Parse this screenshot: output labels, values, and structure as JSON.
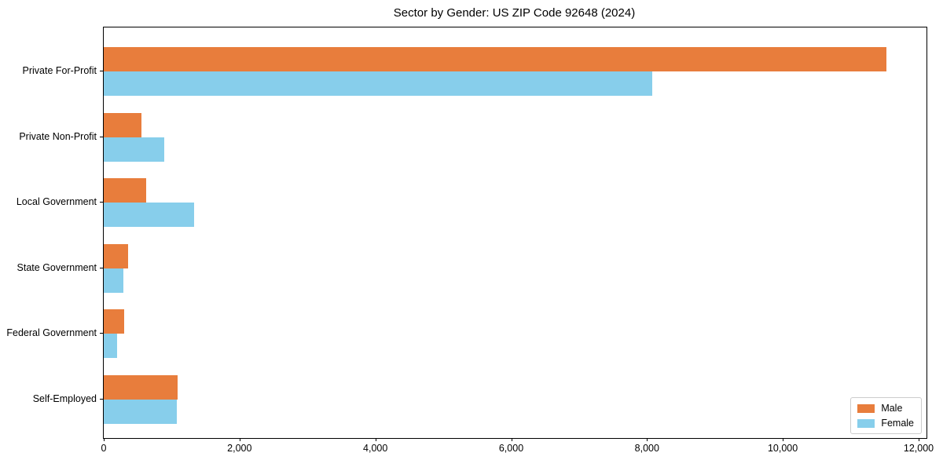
{
  "title": "Sector by Gender: US ZIP Code 92648 (2024)",
  "chart_data": {
    "type": "bar",
    "orientation": "horizontal",
    "title": "Sector by Gender: US ZIP Code 92648 (2024)",
    "xlabel": "",
    "ylabel": "",
    "categories": [
      "Private For-Profit",
      "Private Non-Profit",
      "Local Government",
      "State Government",
      "Federal Government",
      "Self-Employed"
    ],
    "series": [
      {
        "name": "Male",
        "color": "#e87d3c",
        "values": [
          11530,
          550,
          620,
          360,
          300,
          1090
        ]
      },
      {
        "name": "Female",
        "color": "#87ceeb",
        "values": [
          8080,
          890,
          1330,
          290,
          200,
          1070
        ]
      }
    ],
    "xlim": [
      0,
      12116
    ],
    "xticks": [
      0,
      2000,
      4000,
      6000,
      8000,
      10000,
      12000
    ],
    "xtick_labels": [
      "0",
      "2,000",
      "4,000",
      "6,000",
      "8,000",
      "10,000",
      "12,000"
    ],
    "grid": false,
    "legend": {
      "position": "lower right",
      "entries": [
        "Male",
        "Female"
      ]
    }
  }
}
